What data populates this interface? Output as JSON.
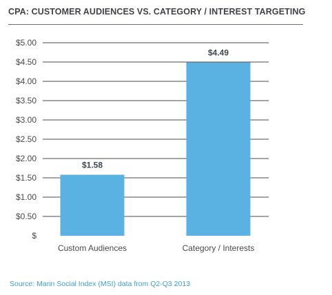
{
  "chart_data": {
    "type": "bar",
    "title": "CPA: CUSTOMER AUDIENCES VS. CATEGORY / INTEREST TARGETING",
    "categories": [
      "Custom Audiences",
      "Category / Interests"
    ],
    "values": [
      1.58,
      4.49
    ],
    "value_labels": [
      "$1.58",
      "$4.49"
    ],
    "ylim": [
      0,
      5
    ],
    "ytick_labels": [
      "$",
      "$0.50",
      "$1.00",
      "$1.50",
      "$2.00",
      "$2.50",
      "$3.00",
      "$3.50",
      "$4.00",
      "$4.50",
      "$5.00"
    ],
    "ytick_values": [
      0,
      0.5,
      1.0,
      1.5,
      2.0,
      2.5,
      3.0,
      3.5,
      4.0,
      4.5,
      5.0
    ],
    "grid": true,
    "bar_color": "#5ab2e2",
    "grid_color": "#4a4a4a"
  },
  "source": "Source: Marin Social Index (MSI) data from Q2-Q3 2013"
}
